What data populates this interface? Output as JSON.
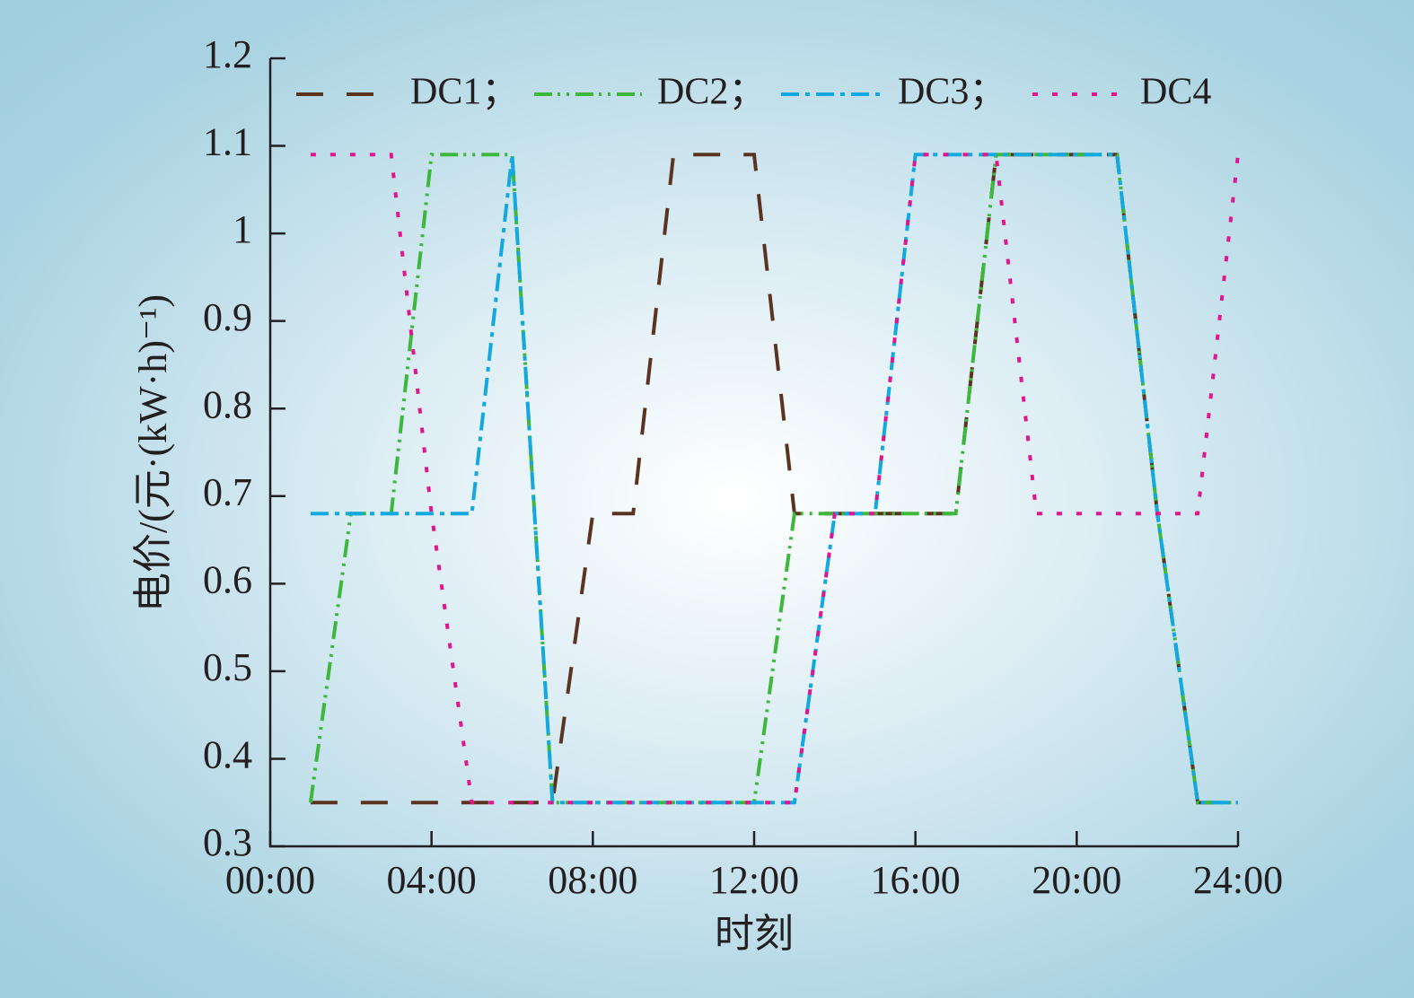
{
  "chart_data": {
    "type": "line",
    "xlabel": "时刻",
    "ylabel": "电价/(元·(kW·h)⁻¹)",
    "x": [
      1,
      2,
      3,
      4,
      5,
      6,
      7,
      8,
      9,
      10,
      11,
      12,
      13,
      14,
      15,
      16,
      17,
      18,
      19,
      20,
      21,
      22,
      23,
      24
    ],
    "series": [
      {
        "name": "DC1；",
        "color": "#5a3420",
        "values": [
          0.35,
          0.35,
          0.35,
          0.35,
          0.35,
          0.35,
          0.35,
          0.68,
          0.68,
          1.09,
          1.09,
          1.09,
          0.68,
          0.68,
          0.68,
          0.68,
          0.68,
          1.09,
          1.09,
          1.09,
          1.09,
          0.68,
          0.35,
          0.35
        ]
      },
      {
        "name": "DC2；",
        "color": "#3db83d",
        "values": [
          0.35,
          0.68,
          0.68,
          1.09,
          1.09,
          1.09,
          0.35,
          0.35,
          0.35,
          0.35,
          0.35,
          0.35,
          0.68,
          0.68,
          0.68,
          0.68,
          0.68,
          1.09,
          1.09,
          1.09,
          1.09,
          0.68,
          0.35,
          0.35
        ]
      },
      {
        "name": "DC3；",
        "color": "#13a9e0",
        "values": [
          0.68,
          0.68,
          0.68,
          0.68,
          0.68,
          1.09,
          0.35,
          0.35,
          0.35,
          0.35,
          0.35,
          0.35,
          0.35,
          0.68,
          0.68,
          1.09,
          1.09,
          1.09,
          1.09,
          1.09,
          1.09,
          0.68,
          0.35,
          0.35
        ]
      },
      {
        "name": "DC4",
        "color": "#e0168c",
        "values": [
          1.09,
          1.09,
          1.09,
          0.68,
          0.35,
          0.35,
          0.35,
          0.35,
          0.35,
          0.35,
          0.35,
          0.35,
          0.35,
          0.68,
          0.68,
          1.09,
          1.09,
          1.09,
          0.68,
          0.68,
          0.68,
          0.68,
          0.68,
          1.09
        ]
      }
    ],
    "xlim": [
      0,
      24
    ],
    "xticks": [
      {
        "value": 0,
        "label": "00:00"
      },
      {
        "value": 4,
        "label": "04:00"
      },
      {
        "value": 8,
        "label": "08:00"
      },
      {
        "value": 12,
        "label": "12:00"
      },
      {
        "value": 16,
        "label": "16:00"
      },
      {
        "value": 20,
        "label": "20:00"
      },
      {
        "value": 24,
        "label": "24:00"
      }
    ],
    "ylim": [
      0.3,
      1.2
    ],
    "yticks": [
      0.3,
      0.4,
      0.5,
      0.6,
      0.7,
      0.8,
      0.9,
      1.0,
      1.1,
      1.2
    ],
    "grid": false,
    "legend": "top"
  }
}
